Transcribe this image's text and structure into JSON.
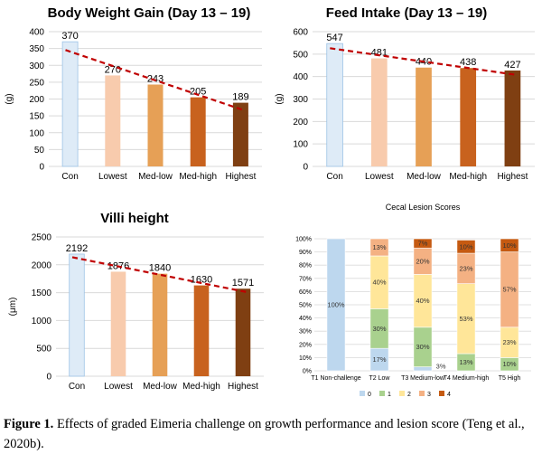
{
  "chart_data": [
    {
      "id": "bwg",
      "type": "bar",
      "title": "Body Weight Gain (Day 13 – 19)",
      "ylabel": "(g)",
      "categories": [
        "Con",
        "Lowest",
        "Med-low",
        "Med-high",
        "Highest"
      ],
      "values": [
        370,
        270,
        243,
        205,
        189
      ],
      "data_labels": [
        "370",
        "270",
        "243",
        "205",
        "189"
      ],
      "ylim": [
        0,
        400
      ],
      "yticks": [
        "0",
        "50",
        "100",
        "150",
        "200",
        "250",
        "300",
        "350",
        "400"
      ],
      "trendline": true,
      "grid": true
    },
    {
      "id": "fi",
      "type": "bar",
      "title": "Feed  Intake (Day 13 – 19)",
      "ylabel": "(g)",
      "categories": [
        "Con",
        "Lowest",
        "Med-low",
        "Med-high",
        "Highest"
      ],
      "values": [
        547,
        481,
        440,
        438,
        427
      ],
      "data_labels": [
        "547",
        "481",
        "440",
        "438",
        "427"
      ],
      "ylim": [
        0,
        600
      ],
      "yticks": [
        "0",
        "100",
        "200",
        "300",
        "400",
        "500",
        "600"
      ],
      "trendline": true,
      "grid": true
    },
    {
      "id": "villi",
      "type": "bar",
      "title": "Villi height",
      "ylabel": "(μm)",
      "categories": [
        "Con",
        "Lowest",
        "Med-low",
        "Med-high",
        "Highest"
      ],
      "values": [
        2192,
        1876,
        1840,
        1630,
        1571
      ],
      "data_labels": [
        "2192",
        "1876",
        "1840",
        "1630",
        "1571"
      ],
      "ylim": [
        0,
        2500
      ],
      "yticks": [
        "0",
        "500",
        "1000",
        "1500",
        "2000",
        "2500"
      ],
      "trendline": true,
      "grid": true
    },
    {
      "id": "cecal",
      "type": "bar",
      "stacked": true,
      "title": "Cecal Lesion Scores",
      "categories": [
        "T1 Non-challenge",
        "T2 Low",
        "T3 Medium-low",
        "T4 Medium-high",
        "T5 High"
      ],
      "ylim": [
        0,
        100
      ],
      "yticks": [
        "0%",
        "10%",
        "20%",
        "30%",
        "40%",
        "50%",
        "60%",
        "70%",
        "80%",
        "90%",
        "100%"
      ],
      "series": [
        {
          "name": "0",
          "color": "#bdd7ee",
          "values": [
            100,
            17,
            3,
            0,
            0
          ],
          "labels": [
            "100%",
            "17%",
            "",
            "",
            ""
          ]
        },
        {
          "name": "1",
          "color": "#a9d18e",
          "values": [
            0,
            30,
            30,
            13,
            10
          ],
          "labels": [
            "",
            "30%",
            "30%",
            "13%",
            "10%"
          ]
        },
        {
          "name": "2",
          "color": "#ffe699",
          "values": [
            0,
            40,
            40,
            53,
            23
          ],
          "labels": [
            "",
            "40%",
            "40%",
            "53%",
            "23%"
          ]
        },
        {
          "name": "3",
          "color": "#f4b183",
          "values": [
            0,
            13,
            20,
            23,
            57
          ],
          "labels": [
            "",
            "13%",
            "20%",
            "23%",
            "57%"
          ]
        },
        {
          "name": "4",
          "color": "#c55a11",
          "values": [
            0,
            0,
            7,
            10,
            10
          ],
          "labels": [
            "",
            "",
            "7%",
            "10%",
            "10%"
          ]
        }
      ],
      "extra_label": "3%",
      "legend": [
        "0",
        "1",
        "2",
        "3",
        "4"
      ]
    }
  ],
  "colors": {
    "bars": [
      "#deebf7",
      "#f8cbad",
      "#e6a056",
      "#c8621e",
      "#7f3f12"
    ],
    "trend": "#c00000",
    "grid": "#d9d9d9"
  },
  "caption": {
    "label": "Figure 1.",
    "text": " Effects of graded Eimeria challenge on growth performance and lesion score (Teng et al., 2020b)."
  }
}
